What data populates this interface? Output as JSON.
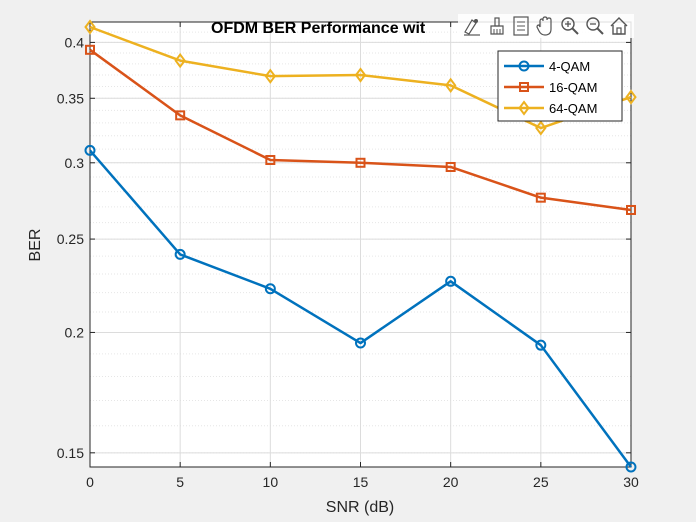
{
  "chart_data": {
    "type": "line",
    "title": "OFDM BER Performance wit",
    "xlabel": "SNR (dB)",
    "ylabel": "BER",
    "x": [
      0,
      5,
      10,
      15,
      20,
      25,
      30
    ],
    "xticks": [
      "0",
      "5",
      "10",
      "15",
      "20",
      "25",
      "30"
    ],
    "yticks": [
      "0.15",
      "0.2",
      "0.25",
      "0.3",
      "0.35",
      "0.4"
    ],
    "yscale": "log",
    "xlim": [
      0,
      30
    ],
    "ylim": [
      0.145,
      0.42
    ],
    "grid": "on (major and minor)",
    "legend_location": "top-right",
    "series": [
      {
        "name": "4-QAM",
        "color": "#0072BD",
        "marker": "circle",
        "values": [
          0.309,
          0.241,
          0.222,
          0.195,
          0.226,
          0.194,
          0.145
        ]
      },
      {
        "name": "16-QAM",
        "color": "#D95319",
        "marker": "square",
        "values": [
          0.393,
          0.336,
          0.302,
          0.3,
          0.297,
          0.276,
          0.268
        ]
      },
      {
        "name": "64-QAM",
        "color": "#EDB120",
        "marker": "diamond",
        "values": [
          0.415,
          0.383,
          0.369,
          0.37,
          0.361,
          0.326,
          0.351
        ]
      }
    ]
  },
  "toolbar": {
    "icons": [
      "datatip-icon",
      "brush-icon",
      "legend-icon",
      "pan-icon",
      "zoom-in-icon",
      "zoom-out-icon",
      "home-icon"
    ]
  }
}
